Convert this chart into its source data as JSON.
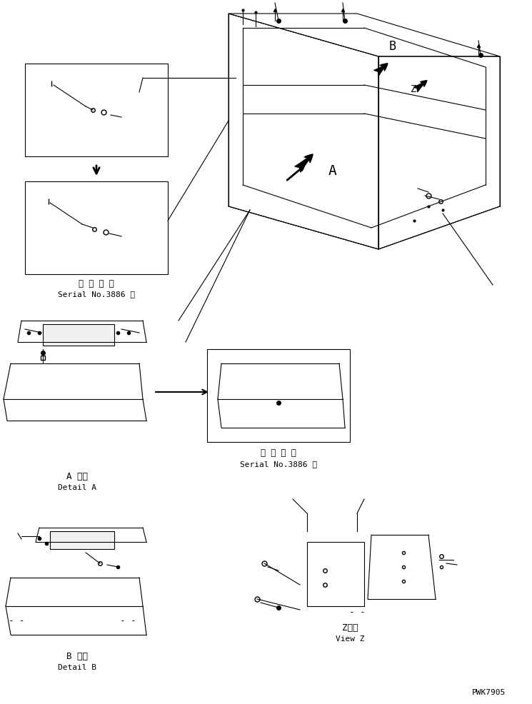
{
  "bg_color": "#ffffff",
  "line_color": "#000000",
  "fig_width": 7.45,
  "fig_height": 9.87,
  "dpi": 100,
  "labels": {
    "detail_a_jp": "A 詳細",
    "detail_a_en": "Detail A",
    "detail_b_jp": "B 詳細",
    "detail_b_en": "Detail B",
    "view_z_jp": "Z　視",
    "view_z_en": "View Z",
    "serial_jp1": "適 用 号 機",
    "serial_en1": "Serial No.3886 ～",
    "serial_jp2": "適 用 号 機",
    "serial_en2": "Serial No.3886 ～",
    "part_number": "PWK7905",
    "label_A": "A",
    "label_B": "B",
    "label_Z": "Z"
  },
  "font_sizes": {
    "label_large": 9,
    "label_small": 7,
    "part_number": 8,
    "caption": 8
  }
}
